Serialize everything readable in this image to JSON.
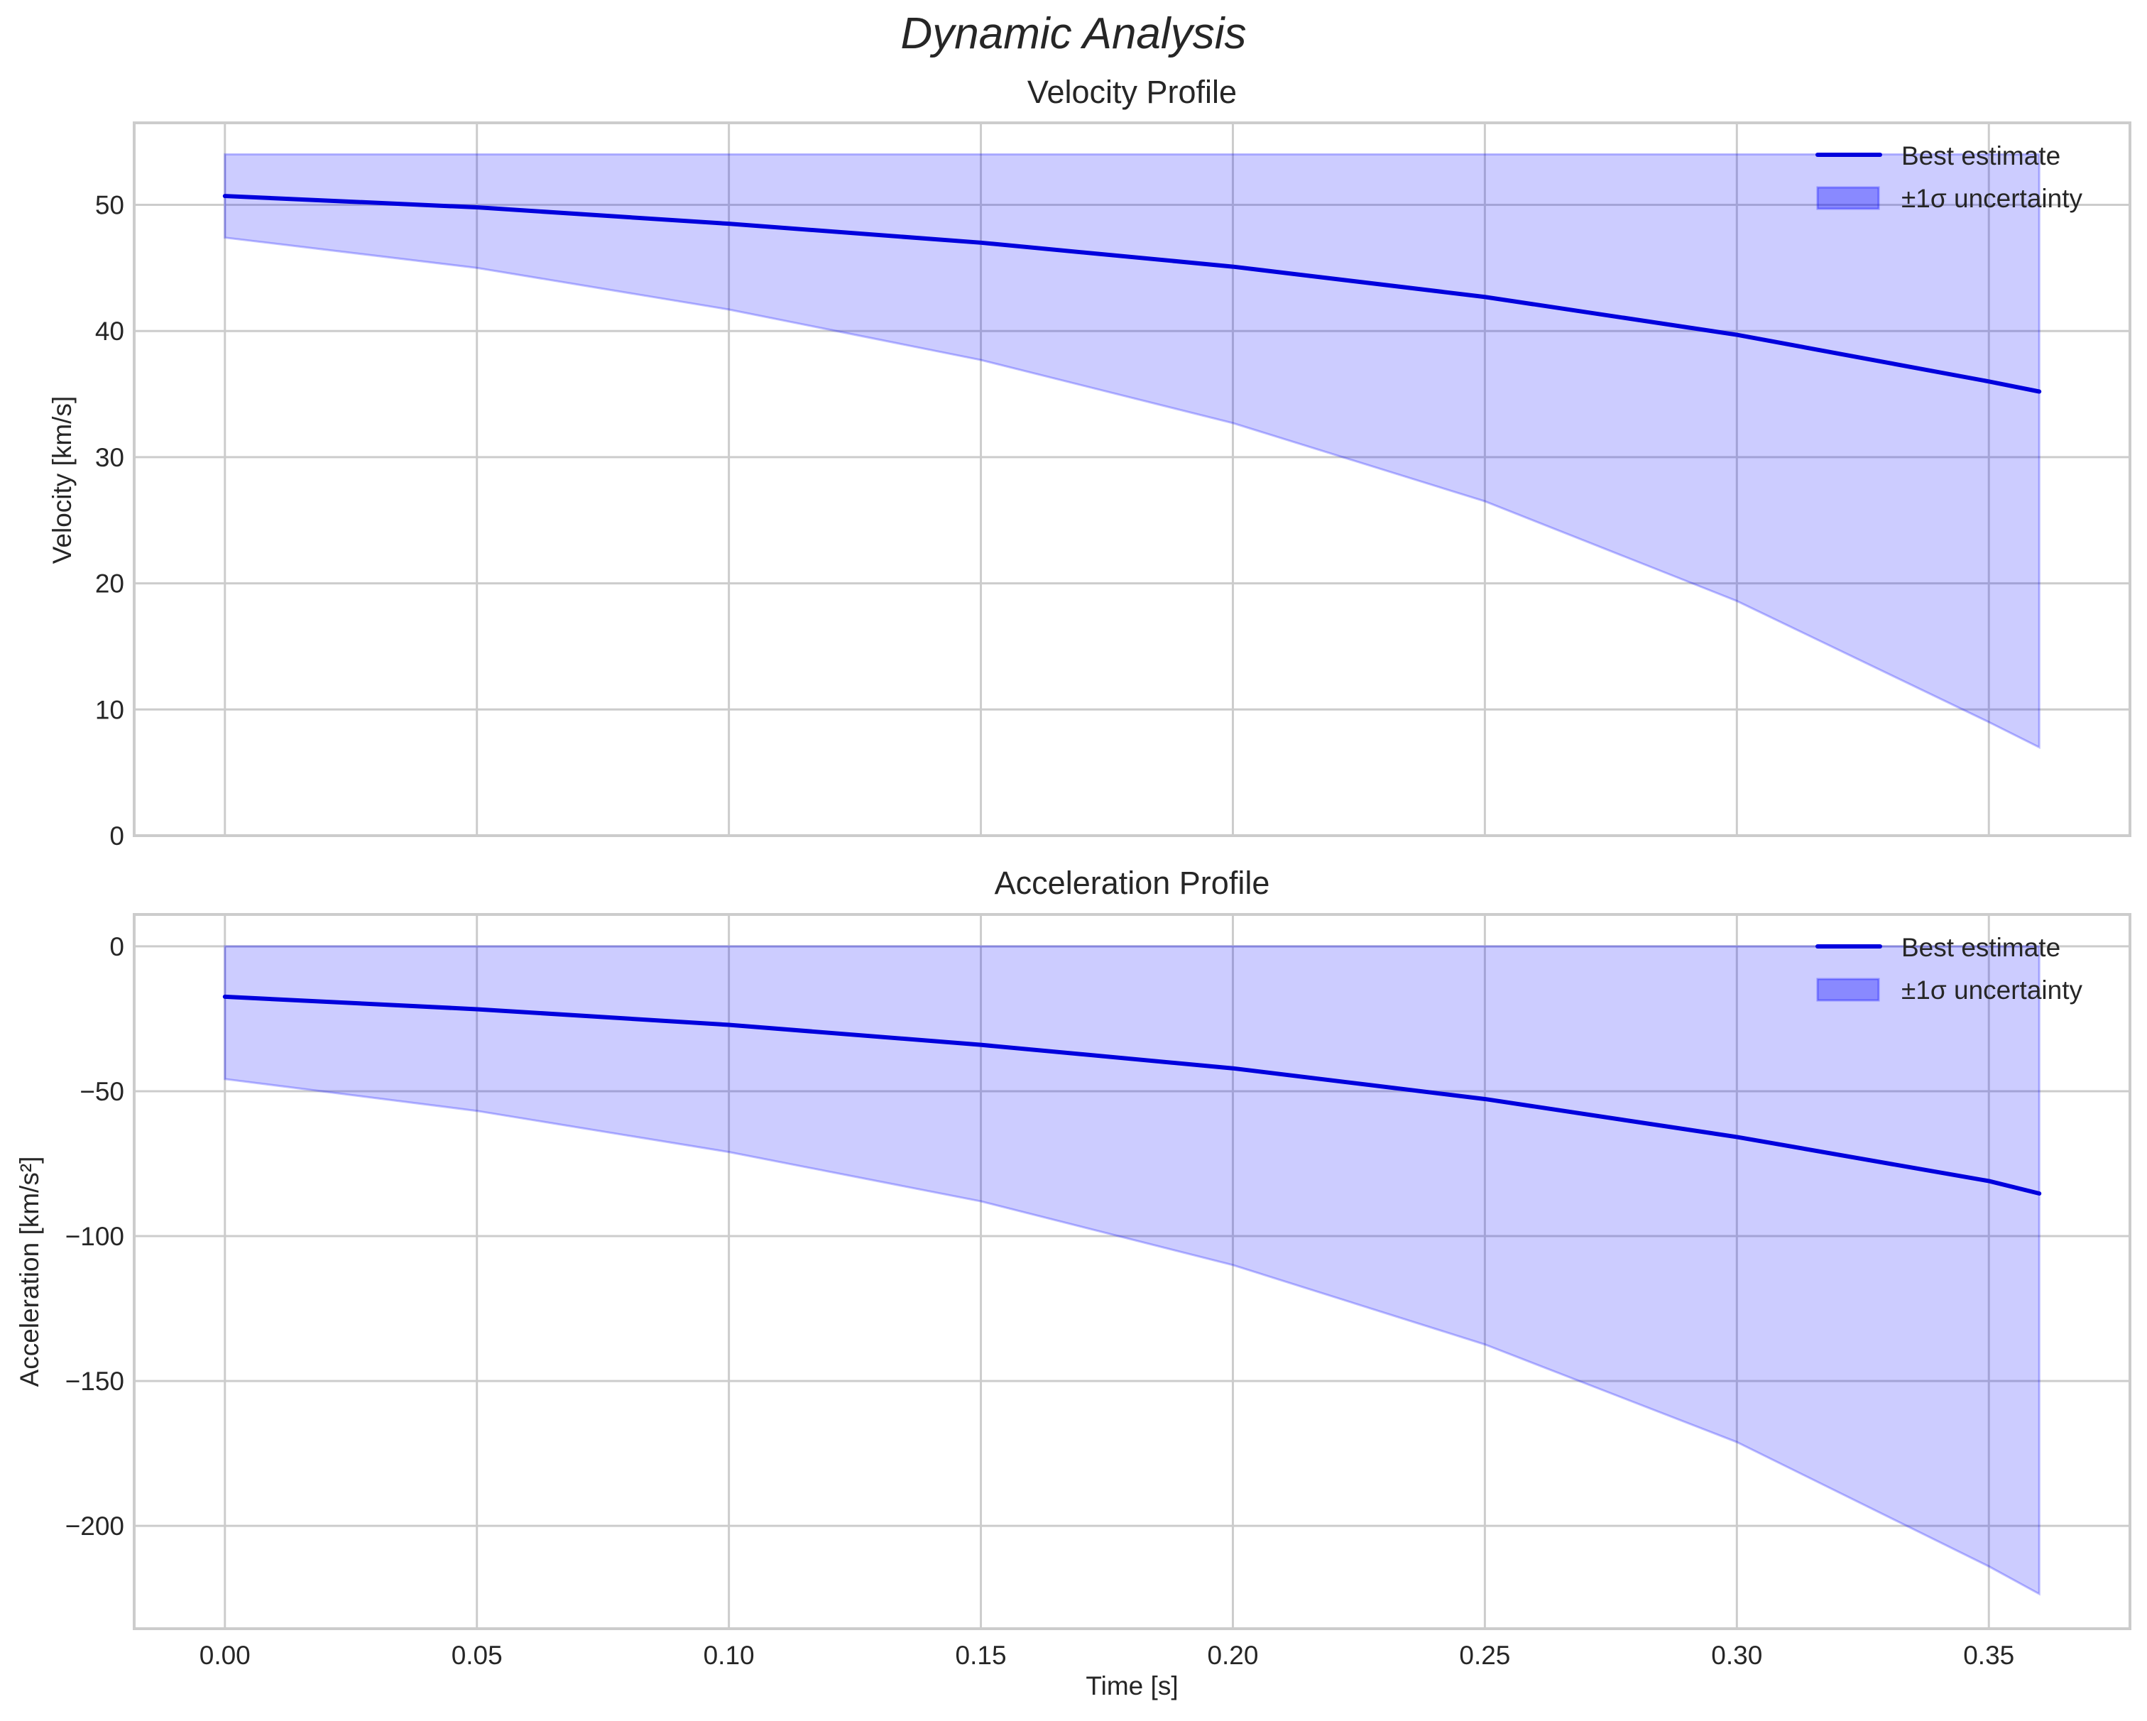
{
  "figure": {
    "suptitle": "Dynamic Analysis",
    "xlabel": "Time [s]",
    "colors": {
      "line": "#0000dd",
      "band_fill": "#0000ff",
      "band_alpha": 0.2,
      "grid": "#cccccc",
      "spine": "#cccccc",
      "text": "#262626"
    }
  },
  "chart_data": [
    {
      "type": "line",
      "title": "Velocity Profile",
      "xlabel": "",
      "ylabel": "Velocity [km/s]",
      "xlim": [
        -0.018,
        0.378
      ],
      "ylim": [
        0,
        56.5
      ],
      "xticks": [
        0.0,
        0.05,
        0.1,
        0.15,
        0.2,
        0.25,
        0.3,
        0.35
      ],
      "xtick_labels": [],
      "yticks": [
        0,
        10,
        20,
        30,
        40,
        50
      ],
      "ytick_labels": [
        "0",
        "10",
        "20",
        "30",
        "40",
        "50"
      ],
      "grid": true,
      "legend_position": "upper right",
      "x": [
        0.0,
        0.05,
        0.1,
        0.15,
        0.2,
        0.25,
        0.3,
        0.35,
        0.36
      ],
      "series": [
        {
          "name": "Best estimate",
          "kind": "line",
          "values": [
            50.7,
            49.8,
            48.5,
            47.0,
            45.1,
            42.7,
            39.7,
            36.0,
            35.2
          ]
        },
        {
          "name": "±1σ uncertainty",
          "kind": "band",
          "upper": [
            54.0,
            54.0,
            54.0,
            54.0,
            54.0,
            54.0,
            54.0,
            54.0,
            54.0
          ],
          "lower": [
            47.4,
            45.0,
            41.7,
            37.7,
            32.7,
            26.5,
            18.6,
            9.0,
            7.0
          ]
        }
      ]
    },
    {
      "type": "line",
      "title": "Acceleration Profile",
      "xlabel": "Time [s]",
      "ylabel": "Acceleration [km/s²]",
      "xlim": [
        -0.018,
        0.378
      ],
      "ylim": [
        -235.5,
        11
      ],
      "xticks": [
        0.0,
        0.05,
        0.1,
        0.15,
        0.2,
        0.25,
        0.3,
        0.35
      ],
      "xtick_labels": [
        "0.00",
        "0.05",
        "0.10",
        "0.15",
        "0.20",
        "0.25",
        "0.30",
        "0.35"
      ],
      "yticks": [
        0,
        -50,
        -100,
        -150,
        -200
      ],
      "ytick_labels": [
        "0",
        "−50",
        "−100",
        "−150",
        "−200"
      ],
      "grid": true,
      "legend_position": "upper right",
      "x": [
        0.0,
        0.05,
        0.1,
        0.15,
        0.2,
        0.25,
        0.3,
        0.35,
        0.36
      ],
      "series": [
        {
          "name": "Best estimate",
          "kind": "line",
          "values": [
            -17.4,
            -21.7,
            -27.1,
            -34.0,
            -42.1,
            -52.7,
            -65.8,
            -81.0,
            -85.3
          ]
        },
        {
          "name": "±1σ uncertainty",
          "kind": "band",
          "upper": [
            0,
            0,
            0,
            0,
            0,
            0,
            0,
            0,
            0
          ],
          "lower": [
            -45.8,
            -56.8,
            -71.0,
            -88.0,
            -110.0,
            -137.4,
            -171.1,
            -214.0,
            -223.5
          ]
        }
      ]
    }
  ],
  "legend": {
    "items": [
      {
        "label": "Best estimate",
        "icon": "line-swatch"
      },
      {
        "label": "±1σ uncertainty",
        "icon": "patch-swatch"
      }
    ]
  }
}
